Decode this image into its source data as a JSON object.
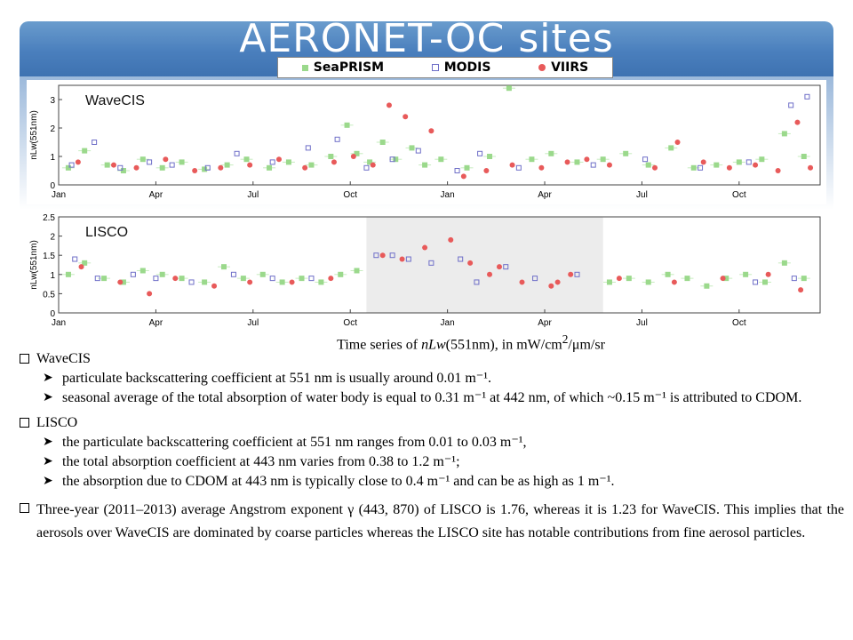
{
  "title": "AERONET-OC sites",
  "legend": [
    {
      "label": "SeaPRISM",
      "marker": "filled-square",
      "color": "#9bd98c"
    },
    {
      "label": "MODIS",
      "marker": "open-square",
      "color": "#6f6fc8"
    },
    {
      "label": "VIIRS",
      "marker": "filled-circle",
      "color": "#e85a5a"
    }
  ],
  "chart_data": [
    {
      "type": "scatter",
      "site_label": "WaveCIS",
      "ylabel": "nLw(551nm)",
      "ylim": [
        0,
        3.5
      ],
      "yticks": [
        "0",
        "1",
        "2",
        "3"
      ],
      "xticks": [
        "Jan",
        "Apr",
        "Jul",
        "Oct",
        "Jan",
        "Apr",
        "Jul",
        "Oct"
      ],
      "x_range_months": [
        0,
        23.5
      ],
      "series": [
        {
          "name": "SeaPRISM",
          "points": [
            [
              0.3,
              0.6
            ],
            [
              0.8,
              1.2
            ],
            [
              1.5,
              0.7
            ],
            [
              2.0,
              0.5
            ],
            [
              2.6,
              0.9
            ],
            [
              3.2,
              0.6
            ],
            [
              3.8,
              0.8
            ],
            [
              4.5,
              0.55
            ],
            [
              5.2,
              0.7
            ],
            [
              5.8,
              0.9
            ],
            [
              6.5,
              0.6
            ],
            [
              7.1,
              0.8
            ],
            [
              7.8,
              0.7
            ],
            [
              8.4,
              1.0
            ],
            [
              8.9,
              2.1
            ],
            [
              9.2,
              1.1
            ],
            [
              9.6,
              0.8
            ],
            [
              10.0,
              1.5
            ],
            [
              10.4,
              0.9
            ],
            [
              10.9,
              1.3
            ],
            [
              11.3,
              0.7
            ],
            [
              11.8,
              0.9
            ],
            [
              12.6,
              0.6
            ],
            [
              13.3,
              1.0
            ],
            [
              13.9,
              3.4
            ],
            [
              14.6,
              0.9
            ],
            [
              15.2,
              1.1
            ],
            [
              16.0,
              0.8
            ],
            [
              16.8,
              0.9
            ],
            [
              17.5,
              1.1
            ],
            [
              18.2,
              0.7
            ],
            [
              18.9,
              1.3
            ],
            [
              19.6,
              0.6
            ],
            [
              20.3,
              0.7
            ],
            [
              21.0,
              0.8
            ],
            [
              21.7,
              0.9
            ],
            [
              22.4,
              1.8
            ],
            [
              23.0,
              1.0
            ]
          ]
        },
        {
          "name": "MODIS",
          "points": [
            [
              0.4,
              0.7
            ],
            [
              1.1,
              1.5
            ],
            [
              1.9,
              0.6
            ],
            [
              2.8,
              0.8
            ],
            [
              3.5,
              0.7
            ],
            [
              4.6,
              0.6
            ],
            [
              5.5,
              1.1
            ],
            [
              6.6,
              0.8
            ],
            [
              7.7,
              1.3
            ],
            [
              8.6,
              1.6
            ],
            [
              9.5,
              0.6
            ],
            [
              10.3,
              0.9
            ],
            [
              11.1,
              1.2
            ],
            [
              12.3,
              0.5
            ],
            [
              13.0,
              1.1
            ],
            [
              14.2,
              0.6
            ],
            [
              16.5,
              0.7
            ],
            [
              18.1,
              0.9
            ],
            [
              19.8,
              0.6
            ],
            [
              21.3,
              0.8
            ],
            [
              22.6,
              2.8
            ],
            [
              23.1,
              3.1
            ]
          ]
        },
        {
          "name": "VIIRS",
          "points": [
            [
              0.6,
              0.8
            ],
            [
              1.7,
              0.7
            ],
            [
              2.4,
              0.6
            ],
            [
              3.3,
              0.9
            ],
            [
              4.2,
              0.5
            ],
            [
              5.0,
              0.6
            ],
            [
              5.9,
              0.7
            ],
            [
              6.8,
              0.9
            ],
            [
              7.6,
              0.6
            ],
            [
              8.5,
              0.8
            ],
            [
              9.1,
              1.0
            ],
            [
              9.7,
              0.7
            ],
            [
              10.2,
              2.8
            ],
            [
              10.7,
              2.4
            ],
            [
              11.5,
              1.9
            ],
            [
              12.5,
              0.3
            ],
            [
              13.2,
              0.5
            ],
            [
              14.0,
              0.7
            ],
            [
              14.9,
              0.6
            ],
            [
              15.7,
              0.8
            ],
            [
              16.3,
              0.9
            ],
            [
              17.0,
              0.7
            ],
            [
              18.4,
              0.6
            ],
            [
              19.1,
              1.5
            ],
            [
              19.9,
              0.8
            ],
            [
              20.7,
              0.6
            ],
            [
              21.5,
              0.7
            ],
            [
              22.2,
              0.5
            ],
            [
              22.8,
              2.2
            ],
            [
              23.2,
              0.6
            ]
          ]
        }
      ]
    },
    {
      "type": "scatter",
      "site_label": "LISCO",
      "ylabel": "nLw(551nm)",
      "ylim": [
        0,
        2.5
      ],
      "yticks": [
        "0",
        "0.5",
        "1",
        "1.5",
        "2",
        "2.5"
      ],
      "xticks": [
        "Jan",
        "Apr",
        "Jul",
        "Oct",
        "Jan",
        "Apr",
        "Jul",
        "Oct"
      ],
      "x_range_months": [
        0,
        23.5
      ],
      "shaded_range_months": [
        9.5,
        16.8
      ],
      "series": [
        {
          "name": "SeaPRISM",
          "points": [
            [
              0.3,
              1.0
            ],
            [
              0.8,
              1.3
            ],
            [
              1.4,
              0.9
            ],
            [
              2.0,
              0.8
            ],
            [
              2.6,
              1.1
            ],
            [
              3.2,
              1.0
            ],
            [
              3.8,
              0.9
            ],
            [
              4.5,
              0.8
            ],
            [
              5.1,
              1.2
            ],
            [
              5.7,
              0.9
            ],
            [
              6.3,
              1.0
            ],
            [
              6.9,
              0.8
            ],
            [
              7.5,
              0.9
            ],
            [
              8.1,
              0.8
            ],
            [
              8.7,
              1.0
            ],
            [
              9.2,
              1.1
            ],
            [
              17.0,
              0.8
            ],
            [
              17.6,
              0.9
            ],
            [
              18.2,
              0.8
            ],
            [
              18.8,
              1.0
            ],
            [
              19.4,
              0.9
            ],
            [
              20.0,
              0.7
            ],
            [
              20.6,
              0.9
            ],
            [
              21.2,
              1.0
            ],
            [
              21.8,
              0.8
            ],
            [
              22.4,
              1.3
            ],
            [
              23.0,
              0.9
            ]
          ]
        },
        {
          "name": "MODIS",
          "points": [
            [
              0.5,
              1.4
            ],
            [
              1.2,
              0.9
            ],
            [
              2.3,
              1.0
            ],
            [
              3.0,
              0.9
            ],
            [
              4.1,
              0.8
            ],
            [
              5.4,
              1.0
            ],
            [
              6.6,
              0.9
            ],
            [
              7.8,
              0.9
            ],
            [
              9.8,
              1.5
            ],
            [
              10.3,
              1.5
            ],
            [
              10.8,
              1.4
            ],
            [
              11.5,
              1.3
            ],
            [
              12.4,
              1.4
            ],
            [
              12.9,
              0.8
            ],
            [
              13.8,
              1.2
            ],
            [
              14.7,
              0.9
            ],
            [
              16.0,
              1.0
            ],
            [
              21.5,
              0.8
            ],
            [
              22.7,
              0.9
            ]
          ]
        },
        {
          "name": "VIIRS",
          "points": [
            [
              0.7,
              1.2
            ],
            [
              1.9,
              0.8
            ],
            [
              2.8,
              0.5
            ],
            [
              3.6,
              0.9
            ],
            [
              4.8,
              0.7
            ],
            [
              5.9,
              0.8
            ],
            [
              7.2,
              0.8
            ],
            [
              8.4,
              0.9
            ],
            [
              10.0,
              1.5
            ],
            [
              10.6,
              1.4
            ],
            [
              11.3,
              1.7
            ],
            [
              12.1,
              1.9
            ],
            [
              12.7,
              1.3
            ],
            [
              13.3,
              1.0
            ],
            [
              13.6,
              1.2
            ],
            [
              14.3,
              0.8
            ],
            [
              15.2,
              0.7
            ],
            [
              15.4,
              0.8
            ],
            [
              15.8,
              1.0
            ],
            [
              17.3,
              0.9
            ],
            [
              19.0,
              0.8
            ],
            [
              20.5,
              0.9
            ],
            [
              21.9,
              1.0
            ],
            [
              22.9,
              0.6
            ]
          ]
        }
      ]
    }
  ],
  "caption": {
    "prefix": "Time series of ",
    "italic": "nLw",
    "middle": "(551nm), in mW/cm",
    "sup": "2",
    "suffix": "/μm/sr"
  },
  "notes": [
    {
      "heading": "WaveCIS",
      "bullets": [
        "particulate backscattering coefficient at 551 nm is usually around 0.01 m⁻¹.",
        "seasonal average of the total absorption of water body is equal to 0.31 m⁻¹ at 442 nm, of which ~0.15 m⁻¹ is attributed to CDOM."
      ]
    },
    {
      "heading": "LISCO",
      "bullets": [
        "the particulate backscattering coefficient at 551 nm ranges from 0.01 to 0.03 m⁻¹,",
        "the total absorption coefficient at 443 nm varies from 0.38 to 1.2 m⁻¹;",
        "the absorption due to CDOM at 443 nm is typically close to 0.4 m⁻¹ and can be as high as 1 m⁻¹."
      ]
    },
    {
      "heading": "Three-year (2011–2013) average Angstrom exponent γ (443, 870) of LISCO is 1.76, whereas it is 1.23 for WaveCIS. This implies that the aerosols over WaveCIS are dominated by coarse particles whereas the LISCO site has notable contributions from fine aerosol particles.",
      "bullets": []
    }
  ]
}
